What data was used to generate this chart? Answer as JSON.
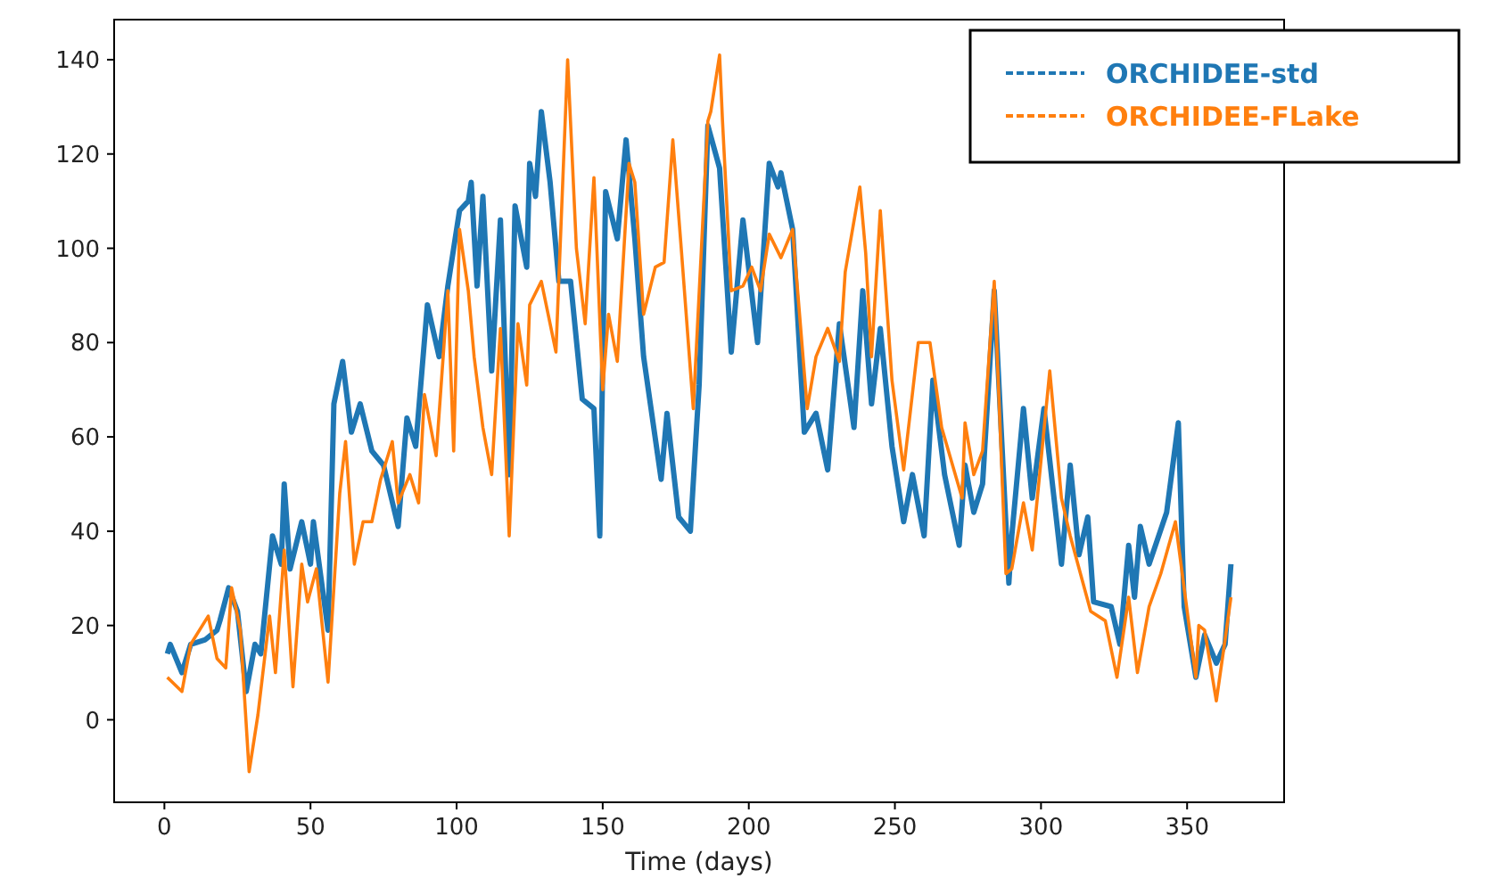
{
  "chart_data": {
    "type": "line",
    "xlabel": "Time (days)",
    "xlim": [
      -17.2,
      383.2
    ],
    "xticks": [
      0,
      50,
      100,
      150,
      200,
      250,
      300,
      350
    ],
    "ylim": [
      -17.5,
      148.5
    ],
    "yticks": [
      0,
      20,
      40,
      60,
      80,
      100,
      120,
      140
    ],
    "legend": "top right",
    "grid": false,
    "series": [
      {
        "name": "ORCHIDEE-std",
        "color": "#1f77b4",
        "x": [
          1,
          2,
          6,
          9,
          14,
          18,
          19,
          22,
          25,
          28,
          31,
          33,
          37,
          40,
          41,
          43,
          47,
          50,
          51,
          56,
          58,
          61,
          64,
          67,
          71,
          75,
          80,
          83,
          86,
          90,
          94,
          97,
          101,
          104,
          105,
          107,
          109,
          112,
          115,
          118,
          120,
          124,
          125,
          127,
          129,
          132,
          135,
          139,
          143,
          147,
          149,
          151,
          155,
          158,
          161,
          164,
          170,
          172,
          176,
          180,
          183,
          186,
          190,
          194,
          198,
          203,
          207,
          210,
          211,
          215,
          219,
          223,
          227,
          231,
          236,
          239,
          242,
          245,
          249,
          253,
          256,
          260,
          263,
          267,
          272,
          274,
          277,
          280,
          284,
          289,
          290,
          294,
          297,
          301,
          307,
          310,
          313,
          316,
          318,
          324,
          327,
          330,
          332,
          334,
          337,
          343,
          347,
          349,
          353,
          356,
          360,
          363,
          365
        ],
        "values": [
          14,
          16,
          10,
          16,
          17,
          19,
          21,
          28,
          23,
          6,
          16,
          14,
          39,
          33,
          50,
          32,
          42,
          33,
          42,
          19,
          67,
          76,
          61,
          67,
          57,
          54,
          41,
          64,
          58,
          88,
          77,
          92,
          108,
          110,
          114,
          92,
          111,
          74,
          106,
          52,
          109,
          96,
          118,
          111,
          129,
          114,
          93,
          93,
          68,
          66,
          39,
          112,
          102,
          123,
          102,
          77,
          51,
          65,
          43,
          40,
          71,
          126,
          117,
          78,
          106,
          80,
          118,
          113,
          116,
          104,
          61,
          65,
          53,
          84,
          62,
          91,
          67,
          83,
          58,
          42,
          52,
          39,
          72,
          52,
          37,
          54,
          44,
          50,
          91,
          29,
          39,
          66,
          47,
          66,
          33,
          54,
          35,
          43,
          25,
          24,
          16,
          37,
          26,
          41,
          33,
          44,
          63,
          24,
          9,
          18,
          12,
          16,
          33
        ]
      },
      {
        "name": "ORCHIDEE-FLake",
        "color": "#ff7f0e",
        "x": [
          1,
          6,
          9,
          15,
          18,
          21,
          23,
          26,
          29,
          32,
          36,
          38,
          41,
          44,
          47,
          49,
          52,
          56,
          60,
          62,
          65,
          68,
          71,
          74,
          78,
          80,
          84,
          87,
          89,
          93,
          97,
          99,
          101,
          104,
          106,
          109,
          112,
          115,
          118,
          121,
          124,
          125,
          129,
          134,
          138,
          141,
          144,
          147,
          150,
          152,
          155,
          159,
          161,
          164,
          168,
          171,
          174,
          177,
          181,
          186,
          187,
          190,
          191,
          194,
          198,
          201,
          204,
          207,
          211,
          215,
          220,
          223,
          227,
          231,
          233,
          238,
          240,
          242,
          245,
          249,
          253,
          258,
          262,
          266,
          273,
          274,
          277,
          280,
          284,
          288,
          290,
          294,
          297,
          303,
          307,
          310,
          317,
          322,
          326,
          330,
          333,
          337,
          341,
          346,
          353,
          354,
          356,
          360,
          363,
          365
        ],
        "values": [
          9,
          6,
          16,
          22,
          13,
          11,
          28,
          19,
          -11,
          1,
          22,
          10,
          36,
          7,
          33,
          25,
          32,
          8,
          48,
          59,
          33,
          42,
          42,
          51,
          59,
          46,
          52,
          46,
          69,
          56,
          91,
          57,
          104,
          91,
          77,
          62,
          52,
          83,
          39,
          84,
          71,
          88,
          93,
          78,
          140,
          100,
          84,
          115,
          70,
          86,
          76,
          118,
          114,
          86,
          96,
          97,
          123,
          99,
          66,
          127,
          129,
          141,
          127,
          91,
          92,
          96,
          91,
          103,
          98,
          104,
          66,
          77,
          83,
          76,
          95,
          113,
          99,
          77,
          108,
          72,
          53,
          80,
          80,
          62,
          47,
          63,
          52,
          57,
          93,
          31,
          32,
          46,
          36,
          74,
          47,
          39,
          23,
          21,
          9,
          26,
          10,
          24,
          31,
          42,
          9,
          20,
          19,
          4,
          17,
          26
        ]
      }
    ]
  }
}
